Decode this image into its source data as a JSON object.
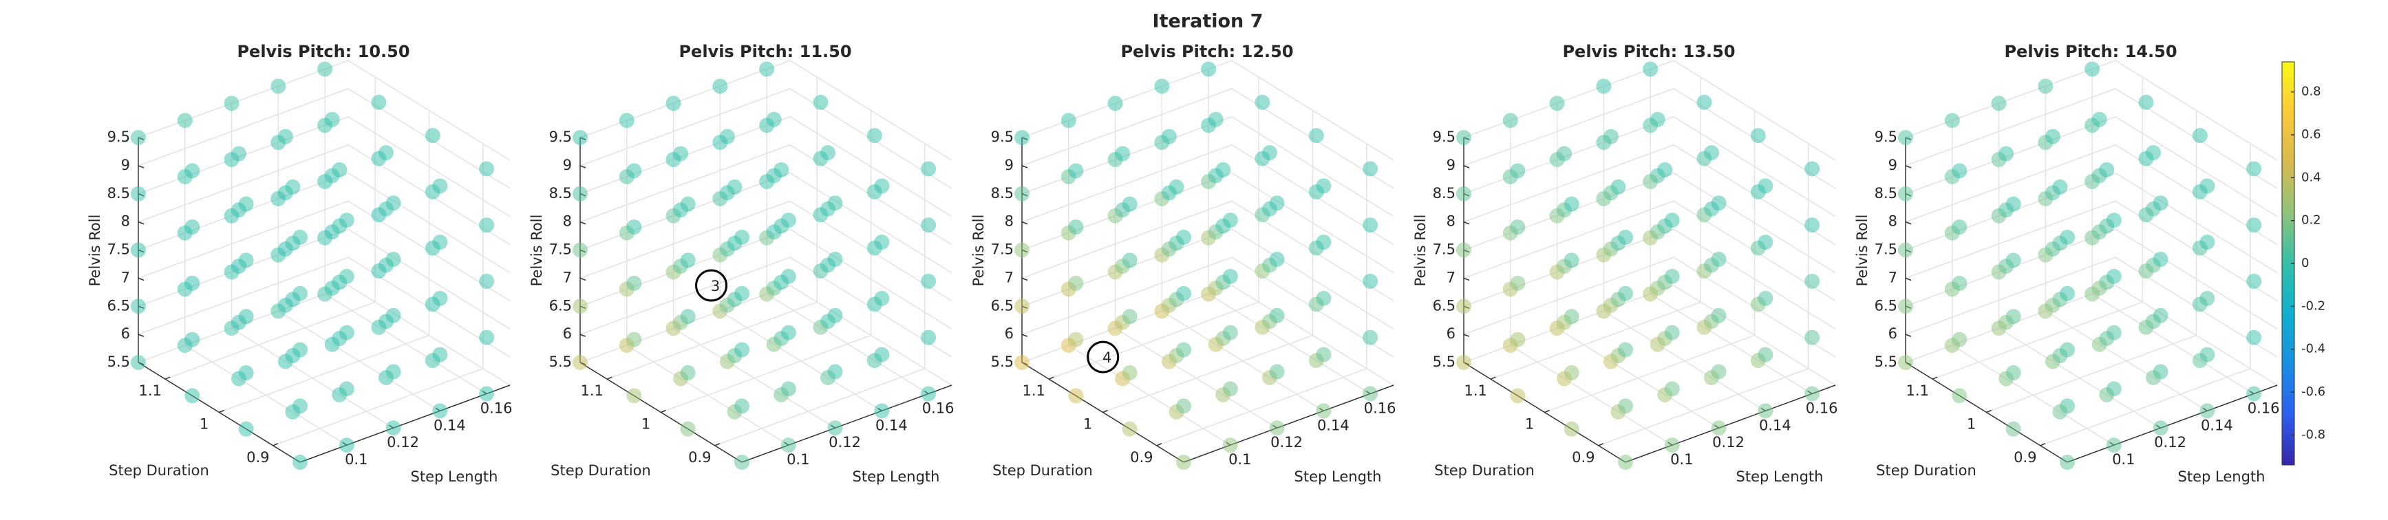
{
  "title": "Iteration 7",
  "colorbar": {
    "colormap": "parula",
    "clim": [
      -0.94,
      0.94
    ],
    "ticks": [
      -0.8,
      -0.6,
      -0.4,
      -0.2,
      0,
      0.2,
      0.4,
      0.6,
      0.8
    ]
  },
  "chart_data": [
    {
      "type": "scatter3d",
      "title": "Pelvis Pitch: 10.50",
      "xlabel": "Step Length",
      "ylabel": "Step Duration",
      "zlabel": "Pelvis Roll",
      "xlim": [
        0.08,
        0.17
      ],
      "ylim": [
        0.85,
        1.15
      ],
      "zlim": [
        5.5,
        9.5
      ],
      "xticks": [
        0.1,
        0.12,
        0.14,
        0.16
      ],
      "yticks": [
        0.9,
        1,
        1.1
      ],
      "zticks": [
        5.5,
        6,
        6.5,
        7,
        7.5,
        8,
        8.5,
        9,
        9.5
      ],
      "x": [
        0.08,
        0.1,
        0.12,
        0.14,
        0.16
      ],
      "y": [
        0.85,
        0.95,
        1.05,
        1.15
      ],
      "z": [
        5.5,
        6.5,
        7.5,
        8.5,
        9.5
      ],
      "values": [
        [
          [
            0,
            0,
            0,
            0,
            0
          ],
          [
            0,
            -0.02,
            -0.02,
            0,
            0
          ],
          [
            0,
            -0.02,
            -0.05,
            -0.02,
            0
          ],
          [
            0.02,
            0,
            -0.02,
            0,
            0.02
          ]
        ],
        [
          [
            0,
            0,
            0,
            0,
            0
          ],
          [
            0,
            -0.02,
            -0.02,
            0,
            0
          ],
          [
            0,
            -0.02,
            -0.05,
            -0.02,
            0
          ],
          [
            0.02,
            0,
            -0.02,
            0,
            0.02
          ]
        ],
        [
          [
            0,
            0,
            0,
            0,
            0
          ],
          [
            0,
            -0.02,
            -0.02,
            0,
            0
          ],
          [
            0,
            -0.02,
            -0.05,
            -0.02,
            0
          ],
          [
            0.02,
            0,
            -0.02,
            0,
            0.02
          ]
        ],
        [
          [
            0,
            0,
            0,
            0,
            0
          ],
          [
            0,
            -0.02,
            -0.02,
            0,
            0
          ],
          [
            0,
            -0.02,
            -0.05,
            -0.02,
            0
          ],
          [
            0.02,
            0,
            -0.02,
            0,
            0.02
          ]
        ],
        [
          [
            0,
            0,
            0,
            0,
            0
          ],
          [
            0,
            -0.02,
            -0.02,
            0,
            0
          ],
          [
            0,
            -0.02,
            -0.05,
            -0.02,
            0
          ],
          [
            0.02,
            0,
            -0.02,
            0,
            0.02
          ]
        ]
      ],
      "annotations": []
    },
    {
      "type": "scatter3d",
      "title": "Pelvis Pitch: 11.50",
      "xlabel": "Step Length",
      "ylabel": "Step Duration",
      "zlabel": "Pelvis Roll",
      "xlim": [
        0.08,
        0.17
      ],
      "ylim": [
        0.85,
        1.15
      ],
      "zlim": [
        5.5,
        9.5
      ],
      "xticks": [
        0.1,
        0.12,
        0.14,
        0.16
      ],
      "yticks": [
        0.9,
        1,
        1.1
      ],
      "zticks": [
        5.5,
        6,
        6.5,
        7,
        7.5,
        8,
        8.5,
        9,
        9.5
      ],
      "x": [
        0.08,
        0.1,
        0.12,
        0.14,
        0.16
      ],
      "y": [
        0.85,
        0.95,
        1.05,
        1.15
      ],
      "z": [
        5.5,
        6.5,
        7.5,
        8.5,
        9.5
      ],
      "values": [
        [
          [
            0.1,
            0.05,
            0,
            0,
            0
          ],
          [
            0.2,
            0.1,
            0.05,
            0,
            0
          ],
          [
            0.3,
            0.2,
            0.1,
            0,
            0
          ],
          [
            0.4,
            0.3,
            0.15,
            0.05,
            0
          ]
        ],
        [
          [
            0.1,
            0.05,
            0,
            0,
            0
          ],
          [
            0.2,
            0.1,
            0.05,
            0,
            0
          ],
          [
            0.3,
            0.2,
            0.1,
            0,
            0
          ],
          [
            0.4,
            0.3,
            0.15,
            0.05,
            0
          ]
        ],
        [
          [
            0.05,
            0,
            0,
            0,
            0
          ],
          [
            0.15,
            0.05,
            0,
            0,
            0
          ],
          [
            0.25,
            0.15,
            0.05,
            0,
            0
          ],
          [
            0.35,
            0.25,
            0.1,
            0,
            0
          ]
        ],
        [
          [
            0,
            0,
            0,
            0,
            0
          ],
          [
            0.1,
            0,
            0,
            0,
            0
          ],
          [
            0.2,
            0.1,
            0,
            0,
            0
          ],
          [
            0.3,
            0.2,
            0.05,
            0,
            0
          ]
        ],
        [
          [
            0,
            0,
            0,
            0,
            0
          ],
          [
            0.05,
            0,
            0,
            0,
            0
          ],
          [
            0.15,
            0.05,
            0,
            0,
            0
          ],
          [
            0.25,
            0.15,
            0,
            0,
            0
          ]
        ]
      ],
      "annotations": [
        {
          "text": "3",
          "x": 0.09,
          "y": 0.95,
          "z": 7.9
        }
      ]
    },
    {
      "type": "scatter3d",
      "title": "Pelvis Pitch: 12.50",
      "xlabel": "Step Length",
      "ylabel": "Step Duration",
      "zlabel": "Pelvis Roll",
      "xlim": [
        0.08,
        0.17
      ],
      "ylim": [
        0.85,
        1.15
      ],
      "zlim": [
        5.5,
        9.5
      ],
      "xticks": [
        0.1,
        0.12,
        0.14,
        0.16
      ],
      "yticks": [
        0.9,
        1,
        1.1
      ],
      "zticks": [
        5.5,
        6,
        6.5,
        7,
        7.5,
        8,
        8.5,
        9,
        9.5
      ],
      "x": [
        0.08,
        0.1,
        0.12,
        0.14,
        0.16
      ],
      "y": [
        0.85,
        0.95,
        1.05,
        1.15
      ],
      "z": [
        5.5,
        6.5,
        7.5,
        8.5,
        9.5
      ],
      "values": [
        [
          [
            0.25,
            0.15,
            0.1,
            0,
            0
          ],
          [
            0.35,
            0.25,
            0.15,
            0.05,
            0
          ],
          [
            0.45,
            0.35,
            0.2,
            0.05,
            0
          ],
          [
            0.5,
            0.4,
            0.25,
            0.1,
            0
          ]
        ],
        [
          [
            0.25,
            0.15,
            0.1,
            0,
            0
          ],
          [
            0.35,
            0.25,
            0.15,
            0.05,
            0
          ],
          [
            0.45,
            0.35,
            0.2,
            0.05,
            0
          ],
          [
            0.5,
            0.4,
            0.25,
            0.1,
            0
          ]
        ],
        [
          [
            0.2,
            0.1,
            0.05,
            0,
            0
          ],
          [
            0.3,
            0.2,
            0.1,
            0,
            0
          ],
          [
            0.4,
            0.3,
            0.15,
            0,
            0
          ],
          [
            0.45,
            0.35,
            0.2,
            0.05,
            0
          ]
        ],
        [
          [
            0.2,
            0.1,
            0.05,
            0,
            0
          ],
          [
            0.3,
            0.2,
            0.1,
            0,
            0
          ],
          [
            0.4,
            0.3,
            0.15,
            0,
            0
          ],
          [
            0.45,
            0.35,
            0.2,
            0.05,
            0
          ]
        ],
        [
          [
            0.15,
            0.05,
            0,
            0,
            0
          ],
          [
            0.25,
            0.15,
            0.05,
            0,
            0
          ],
          [
            0.35,
            0.25,
            0.1,
            0,
            0
          ],
          [
            0.4,
            0.3,
            0.15,
            0,
            0
          ]
        ]
      ],
      "annotations": [
        {
          "text": "4",
          "x": 0.087,
          "y": 1.03,
          "z": 6.2
        }
      ]
    },
    {
      "type": "scatter3d",
      "title": "Pelvis Pitch: 13.50",
      "xlabel": "Step Length",
      "ylabel": "Step Duration",
      "zlabel": "Pelvis Roll",
      "xlim": [
        0.08,
        0.17
      ],
      "ylim": [
        0.85,
        1.15
      ],
      "zlim": [
        5.5,
        9.5
      ],
      "xticks": [
        0.1,
        0.12,
        0.14,
        0.16
      ],
      "yticks": [
        0.9,
        1,
        1.1
      ],
      "zticks": [
        5.5,
        6,
        6.5,
        7,
        7.5,
        8,
        8.5,
        9,
        9.5
      ],
      "x": [
        0.08,
        0.1,
        0.12,
        0.14,
        0.16
      ],
      "y": [
        0.85,
        0.95,
        1.05,
        1.15
      ],
      "z": [
        5.5,
        6.5,
        7.5,
        8.5,
        9.5
      ],
      "values": [
        [
          [
            0.2,
            0.15,
            0.1,
            0.05,
            0
          ],
          [
            0.3,
            0.25,
            0.15,
            0.05,
            0
          ],
          [
            0.4,
            0.3,
            0.2,
            0.1,
            0.05
          ],
          [
            0.4,
            0.35,
            0.2,
            0.1,
            0.05
          ]
        ],
        [
          [
            0.2,
            0.15,
            0.1,
            0.05,
            0
          ],
          [
            0.3,
            0.25,
            0.15,
            0.05,
            0
          ],
          [
            0.4,
            0.3,
            0.2,
            0.1,
            0.05
          ],
          [
            0.4,
            0.35,
            0.2,
            0.1,
            0.05
          ]
        ],
        [
          [
            0.2,
            0.15,
            0.1,
            0.05,
            0
          ],
          [
            0.3,
            0.25,
            0.15,
            0.05,
            0
          ],
          [
            0.4,
            0.3,
            0.2,
            0.1,
            0.05
          ],
          [
            0.4,
            0.35,
            0.2,
            0.1,
            0.05
          ]
        ],
        [
          [
            0.15,
            0.1,
            0.05,
            0,
            0
          ],
          [
            0.25,
            0.2,
            0.1,
            0,
            0
          ],
          [
            0.35,
            0.25,
            0.15,
            0.05,
            0
          ],
          [
            0.35,
            0.3,
            0.15,
            0.05,
            0
          ]
        ],
        [
          [
            0.15,
            0.1,
            0.05,
            0,
            0
          ],
          [
            0.25,
            0.2,
            0.1,
            0,
            0
          ],
          [
            0.35,
            0.25,
            0.15,
            0.05,
            0
          ],
          [
            0.35,
            0.3,
            0.15,
            0.05,
            0
          ]
        ]
      ],
      "annotations": []
    },
    {
      "type": "scatter3d",
      "title": "Pelvis Pitch: 14.50",
      "xlabel": "Step Length",
      "ylabel": "Step Duration",
      "zlabel": "Pelvis Roll",
      "xlim": [
        0.08,
        0.17
      ],
      "ylim": [
        0.85,
        1.15
      ],
      "zlim": [
        5.5,
        9.5
      ],
      "xticks": [
        0.1,
        0.12,
        0.14,
        0.16
      ],
      "yticks": [
        0.9,
        1,
        1.1
      ],
      "zticks": [
        5.5,
        6,
        6.5,
        7,
        7.5,
        8,
        8.5,
        9,
        9.5
      ],
      "x": [
        0.08,
        0.1,
        0.12,
        0.14,
        0.16
      ],
      "y": [
        0.85,
        0.95,
        1.05,
        1.15
      ],
      "z": [
        5.5,
        6.5,
        7.5,
        8.5,
        9.5
      ],
      "values": [
        [
          [
            0.1,
            0.05,
            0.05,
            0,
            0
          ],
          [
            0.15,
            0.1,
            0.1,
            0.05,
            0
          ],
          [
            0.2,
            0.2,
            0.1,
            0.05,
            0
          ],
          [
            0.25,
            0.2,
            0.15,
            0.1,
            0.05
          ]
        ],
        [
          [
            0.1,
            0.05,
            0.05,
            0,
            0
          ],
          [
            0.15,
            0.1,
            0.1,
            0.05,
            0
          ],
          [
            0.2,
            0.2,
            0.1,
            0.05,
            0
          ],
          [
            0.25,
            0.2,
            0.15,
            0.1,
            0.05
          ]
        ],
        [
          [
            0.1,
            0.05,
            0.05,
            0,
            0
          ],
          [
            0.15,
            0.1,
            0.1,
            0.05,
            0
          ],
          [
            0.2,
            0.2,
            0.1,
            0.05,
            0
          ],
          [
            0.25,
            0.2,
            0.15,
            0.1,
            0.05
          ]
        ],
        [
          [
            0.1,
            0.05,
            0.05,
            0,
            0
          ],
          [
            0.15,
            0.1,
            0.1,
            0.05,
            0
          ],
          [
            0.2,
            0.2,
            0.1,
            0.05,
            0
          ],
          [
            0.25,
            0.2,
            0.15,
            0.1,
            0.05
          ]
        ],
        [
          [
            0.05,
            0,
            0,
            0,
            0
          ],
          [
            0.1,
            0.05,
            0.05,
            0,
            0
          ],
          [
            0.15,
            0.15,
            0.05,
            0,
            0
          ],
          [
            0.2,
            0.15,
            0.1,
            0.05,
            0
          ]
        ]
      ],
      "annotations": []
    }
  ]
}
